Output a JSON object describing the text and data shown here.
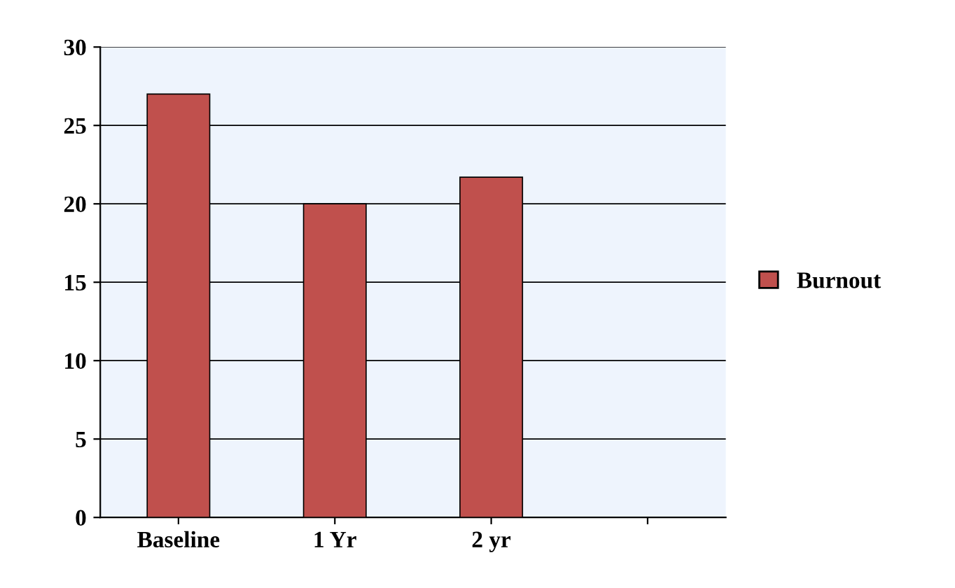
{
  "chart_data": {
    "type": "bar",
    "categories": [
      "Baseline",
      "1 Yr",
      "2 yr",
      null
    ],
    "series": [
      {
        "name": "Burnout",
        "color": "#c0504d",
        "values": [
          27,
          20,
          21.7,
          null
        ]
      }
    ],
    "ylim": [
      0,
      30
    ],
    "yticks": [
      0,
      5,
      10,
      15,
      20,
      25,
      30
    ],
    "grid": "y",
    "legend": "right"
  }
}
